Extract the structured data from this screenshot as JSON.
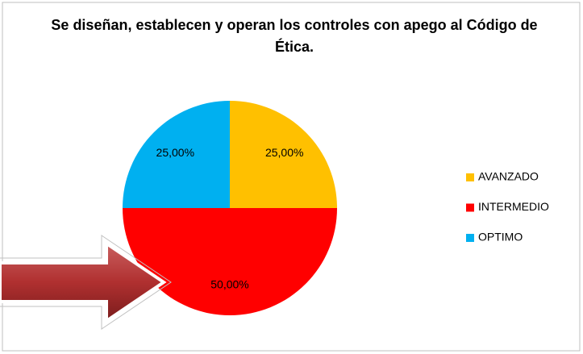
{
  "chart_data": {
    "type": "pie",
    "title": "Se diseñan, establecen y operan los controles con apego al Código de Ética.",
    "categories": [
      "AVANZADO",
      "INTERMEDIO",
      "OPTIMO"
    ],
    "values": [
      25,
      50,
      25
    ],
    "value_labels": [
      "25,00%",
      "50,00%",
      "25,00%"
    ],
    "colors": [
      "#ffc000",
      "#ff0000",
      "#00b0f0"
    ],
    "legend": "right"
  }
}
